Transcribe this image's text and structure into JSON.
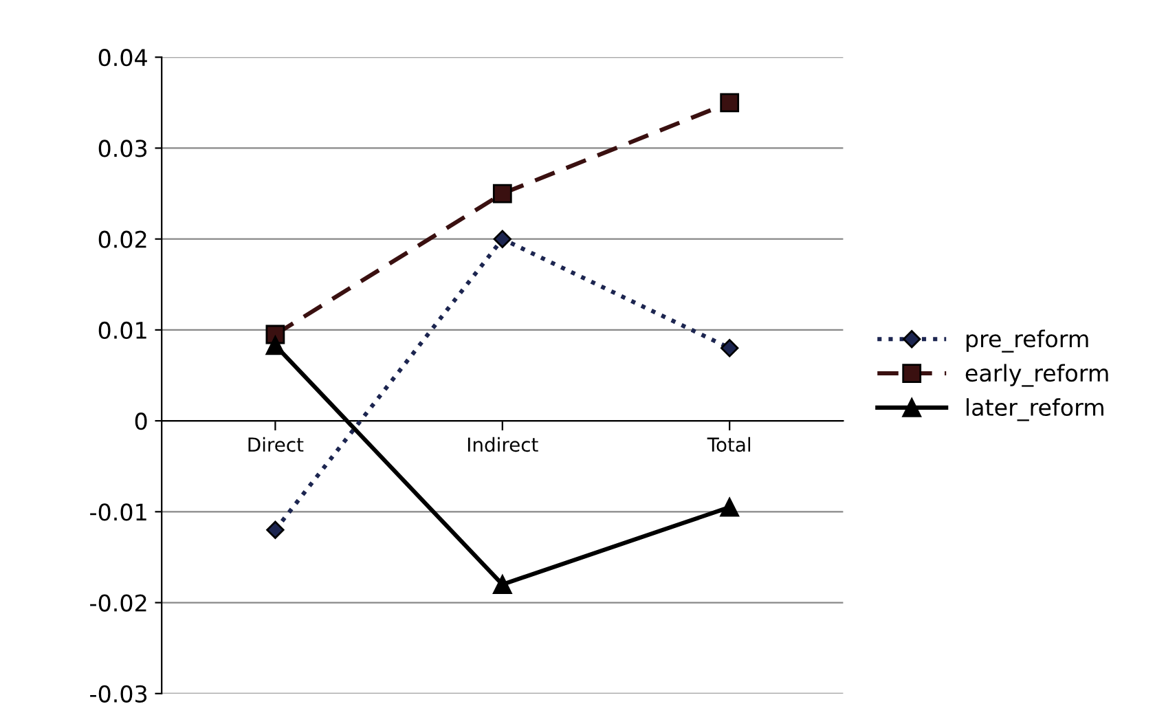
{
  "chart_data": {
    "type": "line",
    "categories": [
      "Direct",
      "Indirect",
      "Total"
    ],
    "series": [
      {
        "name": "pre_reform",
        "color": "#1c2550",
        "values": [
          -0.012,
          0.02,
          0.008
        ],
        "marker": "diamond",
        "line_style": "dotted"
      },
      {
        "name": "early_reform",
        "color": "#3a1010",
        "values": [
          0.0095,
          0.025,
          0.035
        ],
        "marker": "square",
        "line_style": "dashed"
      },
      {
        "name": "later_reform",
        "color": "#000000",
        "values": [
          0.0083,
          -0.018,
          -0.0095
        ],
        "marker": "triangle",
        "line_style": "solid"
      }
    ],
    "ylim": [
      -0.03,
      0.04
    ],
    "yticks": [
      {
        "value": -0.03,
        "label": "-0.03"
      },
      {
        "value": -0.02,
        "label": "-0.02"
      },
      {
        "value": -0.01,
        "label": "-0.01"
      },
      {
        "value": 0,
        "label": "0"
      },
      {
        "value": 0.01,
        "label": "0.01"
      },
      {
        "value": 0.02,
        "label": "0.02"
      },
      {
        "value": 0.03,
        "label": "0.03"
      },
      {
        "value": 0.04,
        "label": "0.04"
      }
    ],
    "grid": "y",
    "legend": "right"
  }
}
